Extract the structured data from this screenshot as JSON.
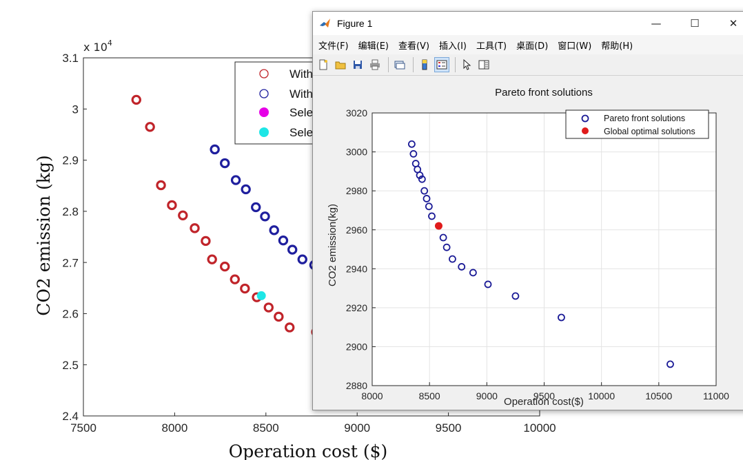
{
  "window": {
    "title": "Figure 1",
    "controls": {
      "minimize": "—",
      "maximize": "☐",
      "close": "✕"
    },
    "menu": [
      "文件(F)",
      "编辑(E)",
      "查看(V)",
      "插入(I)",
      "工具(T)",
      "桌面(D)",
      "窗口(W)",
      "帮助(H)"
    ],
    "toolbar_icons": [
      "new-file-icon",
      "open-folder-icon",
      "save-icon",
      "print-icon",
      "copy-figure-icon",
      "colorbar-icon",
      "legend-icon",
      "pointer-icon",
      "property-editor-icon"
    ]
  },
  "colors": {
    "back_red": "#c0242a",
    "back_blue": "#1f1f9e",
    "selected_magenta": "#e600e6",
    "selected_cyan": "#1ee6e6",
    "front_blue": "#1a1a96",
    "global_red": "#e01b1b"
  },
  "chart_data": [
    {
      "type": "scatter",
      "title": "",
      "xlabel": "Operation cost ($)",
      "ylabel": "CO2 emission (kg)",
      "y_exponent_label": "x 10",
      "y_exponent_power": "4",
      "xlim": [
        7500,
        10000
      ],
      "ylim": [
        2.4,
        3.1
      ],
      "xticks": [
        7500,
        8000,
        8500,
        9000,
        9500,
        10000
      ],
      "xtick_labels": [
        "7500",
        "8000",
        "8500",
        "9000",
        "9500",
        "10000"
      ],
      "yticks": [
        2.4,
        2.5,
        2.6,
        2.7,
        2.8,
        2.9,
        3.0,
        3.1
      ],
      "ytick_labels": [
        "2.4",
        "2.5",
        "2.6",
        "2.7",
        "2.8",
        "2.9",
        "3",
        "3.1"
      ],
      "legend": [
        "With",
        "With",
        "Sele",
        "Sele"
      ],
      "series": [
        {
          "name": "With",
          "color": "#c0242a",
          "marker": "open-circle",
          "x": [
            7790,
            7865,
            7925,
            7985,
            8045,
            8110,
            8170,
            8205,
            8275,
            8330,
            8385,
            8450,
            8515,
            8570,
            8630,
            8775
          ],
          "y": [
            3.018,
            2.965,
            2.851,
            2.812,
            2.792,
            2.767,
            2.742,
            2.706,
            2.692,
            2.667,
            2.649,
            2.632,
            2.612,
            2.594,
            2.573,
            2.564
          ]
        },
        {
          "name": "With",
          "color": "#1f1f9e",
          "marker": "open-circle",
          "x": [
            8220,
            8275,
            8335,
            8390,
            8445,
            8495,
            8545,
            8595,
            8645,
            8700,
            8765
          ],
          "y": [
            2.921,
            2.894,
            2.861,
            2.843,
            2.808,
            2.79,
            2.763,
            2.743,
            2.725,
            2.706,
            2.695
          ]
        },
        {
          "name": "Sele",
          "color": "#e600e6",
          "marker": "filled-circle",
          "x": [],
          "y": []
        },
        {
          "name": "Sele",
          "color": "#1ee6e6",
          "marker": "filled-circle",
          "x": [
            8475
          ],
          "y": [
            2.635
          ]
        }
      ]
    },
    {
      "type": "scatter",
      "title": "Pareto front solutions",
      "xlabel": "Operation cost($)",
      "ylabel": "CO2 emission(kg)",
      "xlim": [
        8000,
        11000
      ],
      "ylim": [
        2880,
        3020
      ],
      "xticks": [
        8000,
        8500,
        9000,
        9500,
        10000,
        10500,
        11000
      ],
      "xtick_labels": [
        "8000",
        "8500",
        "9000",
        "9500",
        "10000",
        "10500",
        "11000"
      ],
      "yticks": [
        2880,
        2900,
        2920,
        2940,
        2960,
        2980,
        3000,
        3020
      ],
      "ytick_labels": [
        "2880",
        "2900",
        "2920",
        "2940",
        "2960",
        "2980",
        "3000",
        "3020"
      ],
      "legend": [
        "Pareto front solutions",
        "Global optimal solutions"
      ],
      "series": [
        {
          "name": "Pareto front solutions",
          "color": "#1a1a96",
          "marker": "open-circle",
          "x": [
            8345,
            8360,
            8380,
            8395,
            8415,
            8435,
            8455,
            8475,
            8495,
            8520,
            8620,
            8650,
            8700,
            8780,
            8880,
            9010,
            9250,
            9650,
            10600
          ],
          "y": [
            3004,
            2999,
            2994,
            2991,
            2988,
            2986,
            2980,
            2976,
            2972,
            2967,
            2956,
            2951,
            2945,
            2941,
            2938,
            2932,
            2926,
            2915,
            2891
          ]
        },
        {
          "name": "Global optimal solutions",
          "color": "#e01b1b",
          "marker": "filled-circle",
          "x": [
            8580
          ],
          "y": [
            2962
          ]
        }
      ]
    }
  ]
}
